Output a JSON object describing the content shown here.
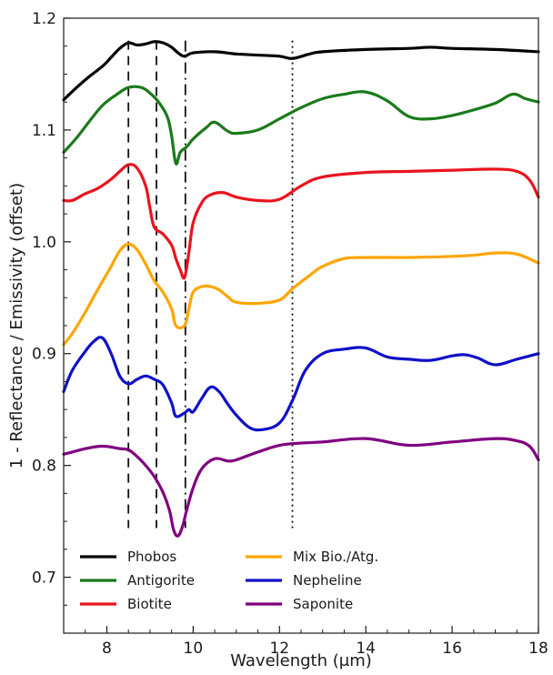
{
  "chart_data": {
    "type": "line",
    "title": "",
    "xlabel": "Wavelength (μm)",
    "ylabel": "1 - Reflectance / Emissivity (offset)",
    "xlim": [
      7,
      18
    ],
    "ylim": [
      0.65,
      1.2
    ],
    "xticks": [
      8,
      10,
      12,
      14,
      16,
      18
    ],
    "xtick_labels": [
      "8",
      "10",
      "12",
      "14",
      "16",
      "18"
    ],
    "yticks": [
      0.7,
      0.8,
      0.9,
      1.0,
      1.1,
      1.2
    ],
    "ytick_labels": [
      "0.7",
      "0.8",
      "0.9",
      "1.0",
      "1.1",
      "1.2"
    ],
    "grid": false,
    "legend_position": "bottom",
    "vlines": [
      {
        "x": 8.5,
        "style": "dashed",
        "y0": 0.744,
        "y1": 1.18
      },
      {
        "x": 9.15,
        "style": "dashed",
        "y0": 0.744,
        "y1": 1.18
      },
      {
        "x": 9.82,
        "style": "dashdot",
        "y0": 0.744,
        "y1": 1.18
      },
      {
        "x": 12.3,
        "style": "dotted",
        "y0": 0.744,
        "y1": 1.18
      }
    ],
    "series": [
      {
        "name": "Phobos",
        "color": "#000000",
        "x": [
          7.0,
          7.3,
          7.6,
          7.9,
          8.1,
          8.3,
          8.5,
          8.7,
          8.9,
          9.1,
          9.3,
          9.5,
          9.65,
          9.8,
          10.0,
          10.5,
          11.0,
          11.5,
          12.0,
          12.3,
          12.7,
          13.0,
          14.0,
          15.0,
          15.5,
          16.0,
          17.0,
          18.0
        ],
        "values": [
          1.127,
          1.138,
          1.148,
          1.157,
          1.165,
          1.173,
          1.178,
          1.176,
          1.177,
          1.179,
          1.178,
          1.174,
          1.169,
          1.166,
          1.169,
          1.17,
          1.168,
          1.167,
          1.166,
          1.164,
          1.168,
          1.17,
          1.172,
          1.173,
          1.174,
          1.173,
          1.172,
          1.17
        ]
      },
      {
        "name": "Antigorite",
        "color": "#1a7a1a",
        "x": [
          7.0,
          7.3,
          7.6,
          7.9,
          8.2,
          8.5,
          8.8,
          9.0,
          9.2,
          9.4,
          9.5,
          9.6,
          9.7,
          9.85,
          10.0,
          10.3,
          10.5,
          10.8,
          11.0,
          11.5,
          12.0,
          12.5,
          13.0,
          13.5,
          14.0,
          14.5,
          15.0,
          15.5,
          16.0,
          16.5,
          17.0,
          17.4,
          17.7,
          18.0
        ],
        "values": [
          1.08,
          1.093,
          1.108,
          1.122,
          1.131,
          1.138,
          1.138,
          1.133,
          1.125,
          1.112,
          1.095,
          1.07,
          1.08,
          1.085,
          1.092,
          1.102,
          1.107,
          1.099,
          1.097,
          1.1,
          1.11,
          1.12,
          1.128,
          1.132,
          1.134,
          1.126,
          1.112,
          1.11,
          1.113,
          1.118,
          1.124,
          1.132,
          1.128,
          1.125
        ]
      },
      {
        "name": "Biotite",
        "color": "#e8141e",
        "x": [
          7.0,
          7.2,
          7.5,
          7.8,
          8.1,
          8.3,
          8.5,
          8.7,
          8.9,
          9.0,
          9.1,
          9.3,
          9.5,
          9.6,
          9.7,
          9.8,
          9.9,
          10.0,
          10.2,
          10.4,
          10.7,
          11.0,
          11.5,
          12.0,
          12.5,
          13.0,
          14.0,
          15.0,
          16.0,
          17.0,
          17.5,
          17.8,
          18.0
        ],
        "values": [
          1.037,
          1.037,
          1.043,
          1.048,
          1.056,
          1.063,
          1.069,
          1.066,
          1.05,
          1.03,
          1.013,
          1.007,
          0.997,
          0.985,
          0.975,
          0.968,
          0.99,
          1.017,
          1.035,
          1.042,
          1.044,
          1.04,
          1.037,
          1.038,
          1.05,
          1.058,
          1.062,
          1.063,
          1.064,
          1.065,
          1.063,
          1.055,
          1.04
        ]
      },
      {
        "name": "Mix Bio./Atg.",
        "color": "#ffa500",
        "x": [
          7.0,
          7.2,
          7.5,
          7.8,
          8.1,
          8.3,
          8.5,
          8.7,
          8.9,
          9.1,
          9.3,
          9.5,
          9.6,
          9.8,
          9.9,
          10.0,
          10.2,
          10.4,
          10.6,
          10.8,
          11.0,
          11.5,
          12.0,
          12.3,
          12.7,
          13.0,
          13.5,
          14.0,
          15.0,
          16.0,
          16.5,
          17.0,
          17.5,
          18.0
        ],
        "values": [
          0.908,
          0.918,
          0.937,
          0.958,
          0.978,
          0.992,
          0.998,
          0.993,
          0.98,
          0.965,
          0.955,
          0.94,
          0.925,
          0.925,
          0.94,
          0.955,
          0.96,
          0.96,
          0.957,
          0.951,
          0.946,
          0.945,
          0.948,
          0.958,
          0.97,
          0.978,
          0.985,
          0.986,
          0.986,
          0.987,
          0.988,
          0.99,
          0.989,
          0.981
        ]
      },
      {
        "name": "Nepheline",
        "color": "#1010c8",
        "x": [
          7.0,
          7.2,
          7.5,
          7.7,
          7.9,
          8.1,
          8.3,
          8.5,
          8.7,
          8.9,
          9.1,
          9.3,
          9.5,
          9.6,
          9.8,
          9.9,
          10.0,
          10.2,
          10.4,
          10.6,
          10.8,
          11.0,
          11.3,
          11.6,
          12.0,
          12.3,
          12.6,
          13.0,
          13.5,
          14.0,
          14.5,
          15.0,
          15.5,
          16.0,
          16.3,
          16.6,
          17.0,
          17.5,
          18.0
        ],
        "values": [
          0.866,
          0.885,
          0.902,
          0.911,
          0.914,
          0.9,
          0.88,
          0.873,
          0.877,
          0.88,
          0.877,
          0.872,
          0.856,
          0.844,
          0.847,
          0.85,
          0.848,
          0.86,
          0.87,
          0.866,
          0.855,
          0.845,
          0.834,
          0.832,
          0.838,
          0.858,
          0.885,
          0.9,
          0.904,
          0.905,
          0.897,
          0.895,
          0.894,
          0.898,
          0.899,
          0.896,
          0.89,
          0.895,
          0.9
        ]
      },
      {
        "name": "Saponite",
        "color": "#800080",
        "x": [
          7.0,
          7.2,
          7.5,
          7.8,
          8.0,
          8.3,
          8.5,
          8.7,
          8.9,
          9.1,
          9.3,
          9.45,
          9.55,
          9.65,
          9.75,
          9.85,
          10.0,
          10.2,
          10.5,
          10.8,
          11.0,
          11.5,
          12.0,
          12.5,
          13.0,
          14.0,
          15.0,
          16.0,
          17.0,
          17.5,
          17.8,
          18.0
        ],
        "values": [
          0.81,
          0.812,
          0.815,
          0.817,
          0.817,
          0.815,
          0.814,
          0.808,
          0.8,
          0.79,
          0.776,
          0.76,
          0.742,
          0.737,
          0.745,
          0.76,
          0.78,
          0.797,
          0.806,
          0.804,
          0.805,
          0.812,
          0.818,
          0.82,
          0.821,
          0.824,
          0.818,
          0.821,
          0.824,
          0.822,
          0.817,
          0.805
        ]
      }
    ]
  }
}
